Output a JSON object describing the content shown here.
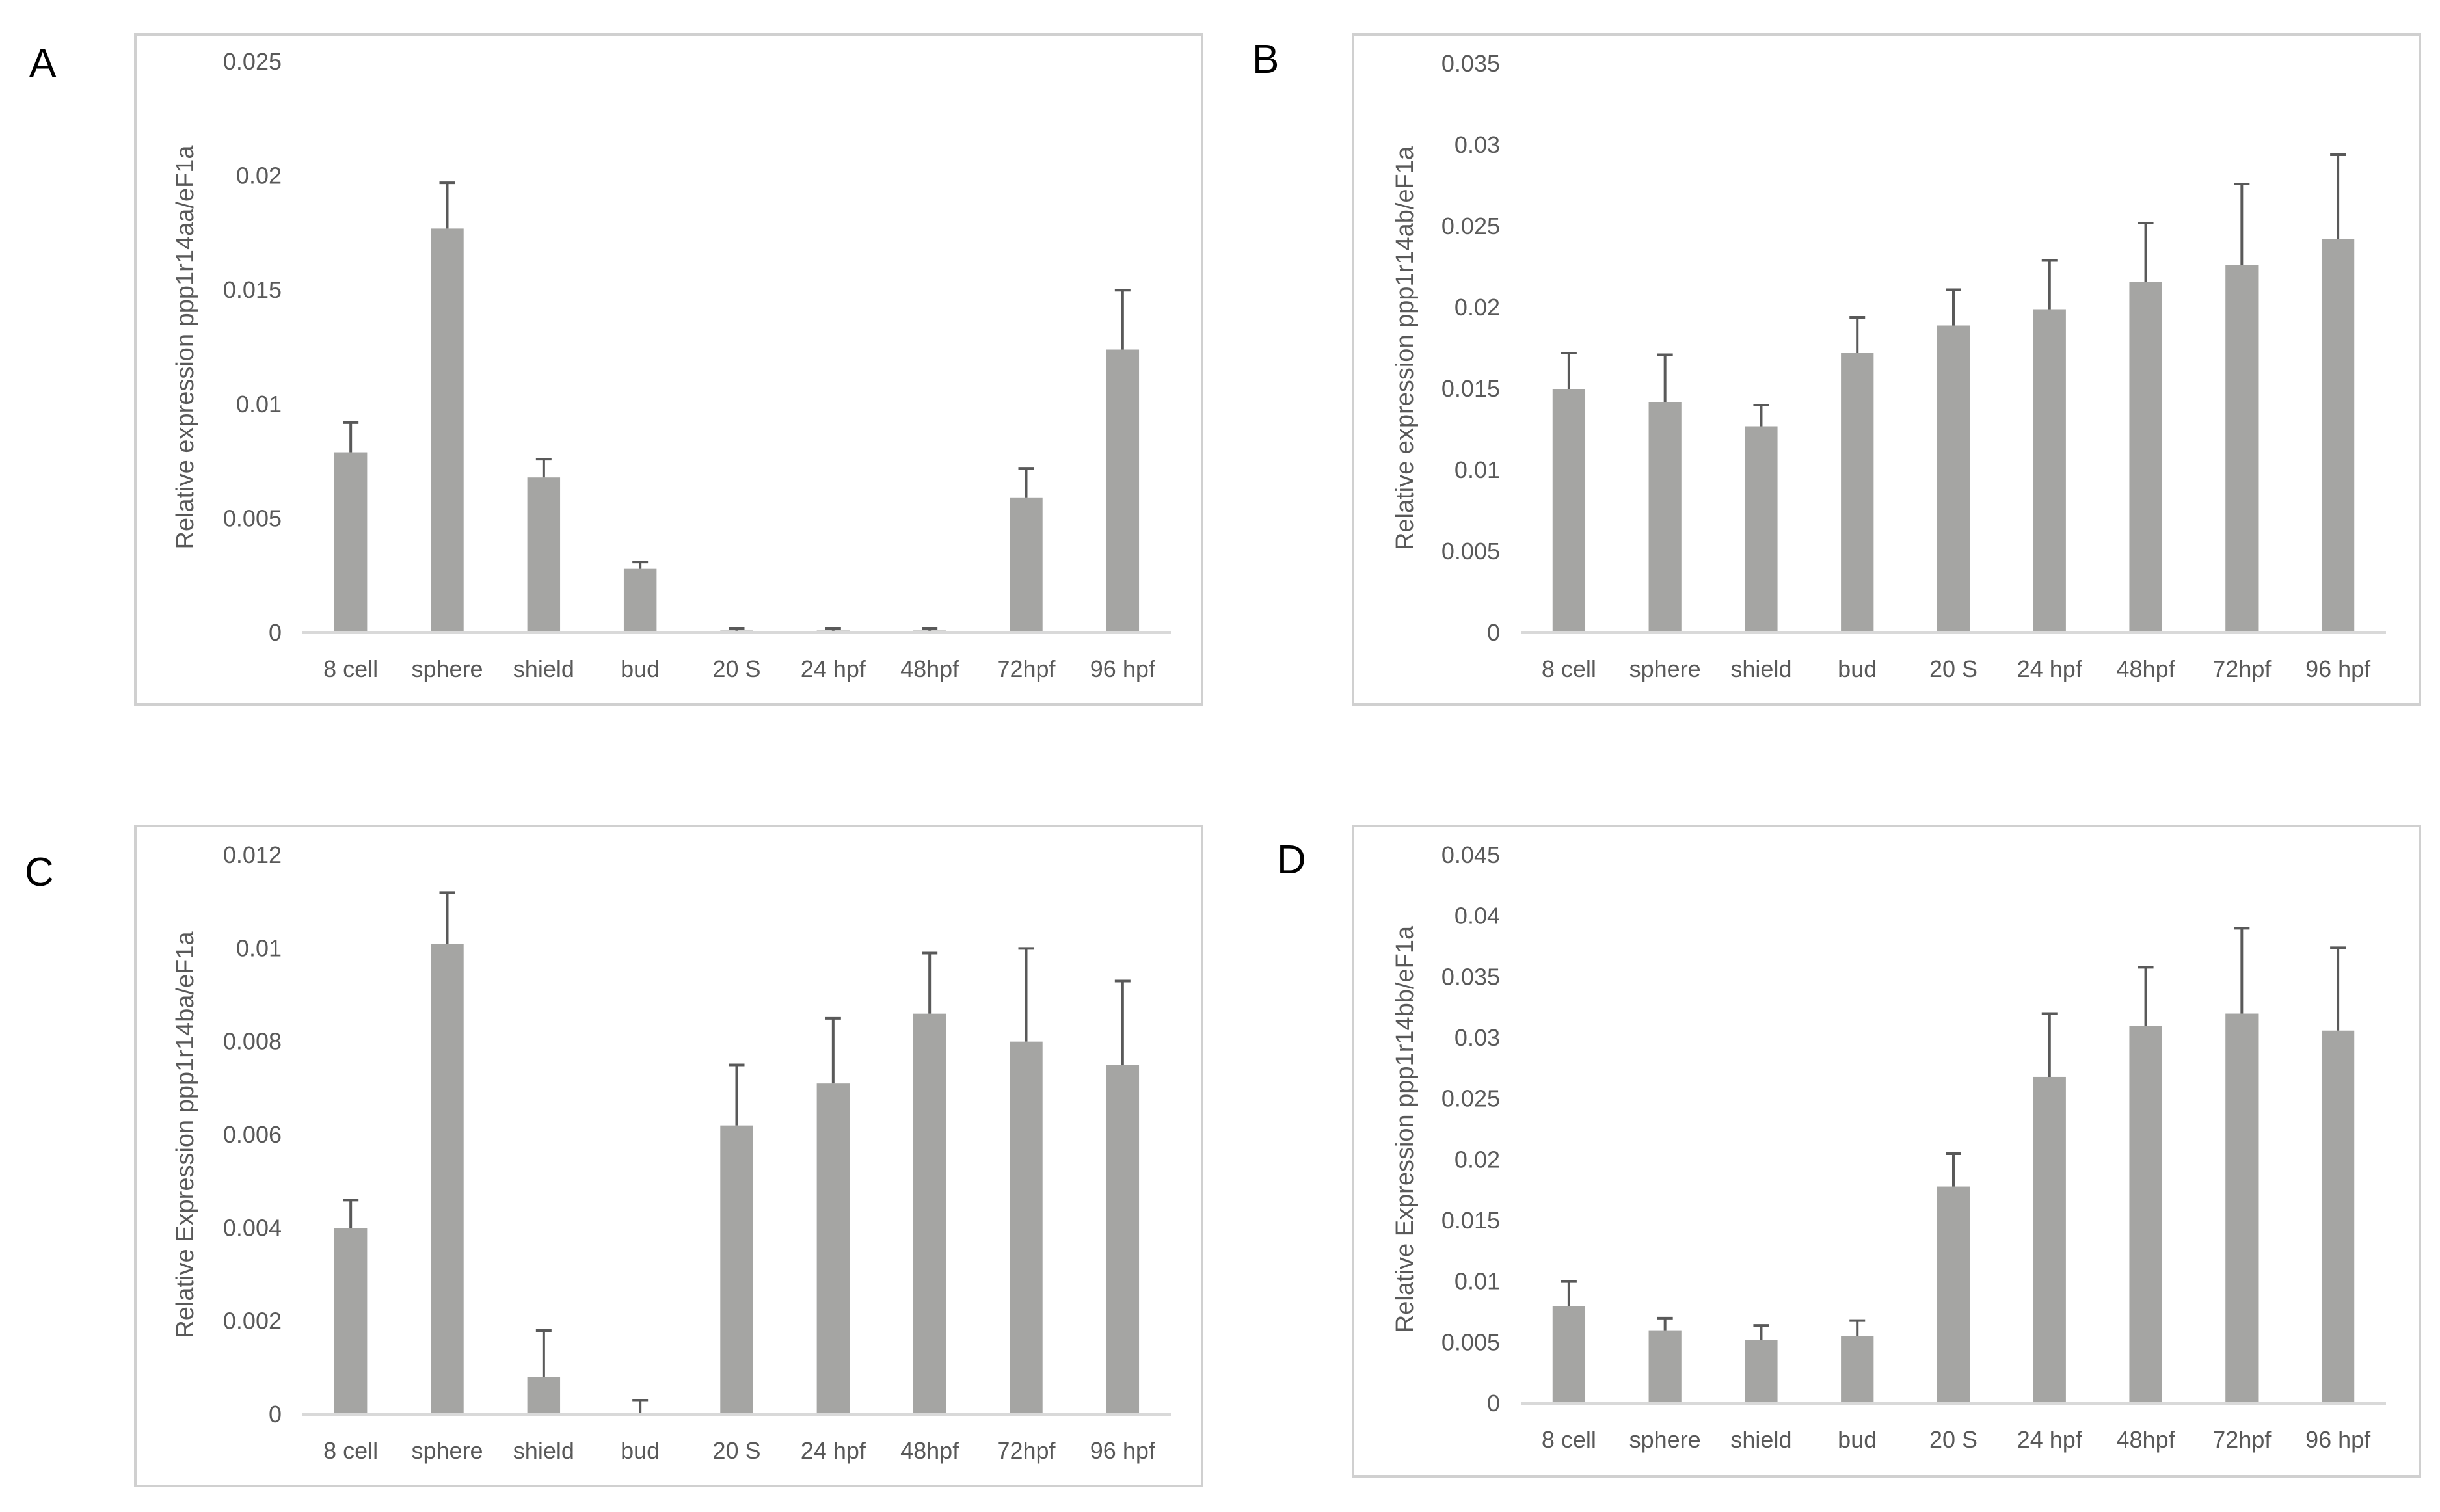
{
  "figure": {
    "panels": [
      "A",
      "B",
      "C",
      "D"
    ],
    "bar_color": "#a5a5a3",
    "error_color": "#595959",
    "axis_color": "#d9d9d9",
    "frame_color": "#d0d0d0"
  },
  "chart_data": [
    {
      "panel": "A",
      "type": "bar",
      "title": "",
      "xlabel": "",
      "ylabel": "Relative expression ppp1r14aa/eF1a",
      "categories": [
        "8 cell",
        "sphere",
        "shield",
        "bud",
        "20 S",
        "24 hpf",
        "48hpf",
        "72hpf",
        "96 hpf"
      ],
      "values": [
        0.0079,
        0.0177,
        0.0068,
        0.0028,
        0.0001,
        0.0001,
        0.0001,
        0.0059,
        0.0124
      ],
      "errors": [
        0.0013,
        0.002,
        0.0008,
        0.0003,
        0.0001,
        0.0001,
        0.0001,
        0.0013,
        0.0026
      ],
      "ylim": [
        0,
        0.025
      ],
      "yticks": [
        "0",
        "0.005",
        "0.01",
        "0.015",
        "0.02",
        "0.025"
      ],
      "grid": false
    },
    {
      "panel": "B",
      "type": "bar",
      "title": "",
      "xlabel": "",
      "ylabel": "Relative expression ppp1r14ab/eF1a",
      "categories": [
        "8 cell",
        "sphere",
        "shield",
        "bud",
        "20 S",
        "24 hpf",
        "48hpf",
        "72hpf",
        "96 hpf"
      ],
      "values": [
        0.015,
        0.0142,
        0.0127,
        0.0172,
        0.0189,
        0.0199,
        0.0216,
        0.0226,
        0.0242
      ],
      "errors": [
        0.0022,
        0.0029,
        0.0013,
        0.0022,
        0.0022,
        0.003,
        0.0036,
        0.005,
        0.0052
      ],
      "ylim": [
        0,
        0.035
      ],
      "yticks": [
        "0",
        "0.005",
        "0.01",
        "0.015",
        "0.02",
        "0.025",
        "0.03",
        "0.035"
      ],
      "grid": false
    },
    {
      "panel": "C",
      "type": "bar",
      "title": "",
      "xlabel": "",
      "ylabel": "Relative Expression ppp1r14ba/eF1a",
      "categories": [
        "8 cell",
        "sphere",
        "shield",
        "bud",
        "20 S",
        "24 hpf",
        "48hpf",
        "72hpf",
        "96 hpf"
      ],
      "values": [
        0.004,
        0.0101,
        0.0008,
        0.0,
        0.0062,
        0.0071,
        0.0086,
        0.008,
        0.0075
      ],
      "errors": [
        0.0006,
        0.0011,
        0.001,
        0.0003,
        0.0013,
        0.0014,
        0.0013,
        0.002,
        0.0018
      ],
      "ylim": [
        0,
        0.012
      ],
      "yticks": [
        "0",
        "0.002",
        "0.004",
        "0.006",
        "0.008",
        "0.01",
        "0.012"
      ],
      "grid": false
    },
    {
      "panel": "D",
      "type": "bar",
      "title": "",
      "xlabel": "",
      "ylabel": "Relative Expression ppp1r14bb/eF1a",
      "categories": [
        "8 cell",
        "sphere",
        "shield",
        "bud",
        "20 S",
        "24 hpf",
        "48hpf",
        "72hpf",
        "96 hpf"
      ],
      "values": [
        0.008,
        0.006,
        0.0052,
        0.0055,
        0.0178,
        0.0268,
        0.031,
        0.032,
        0.0306
      ],
      "errors": [
        0.002,
        0.001,
        0.0012,
        0.0013,
        0.0027,
        0.0052,
        0.0048,
        0.007,
        0.0068
      ],
      "ylim": [
        0,
        0.045
      ],
      "yticks": [
        "0",
        "0.005",
        "0.01",
        "0.015",
        "0.02",
        "0.025",
        "0.03",
        "0.035",
        "0.04",
        "0.045"
      ],
      "grid": false
    }
  ]
}
